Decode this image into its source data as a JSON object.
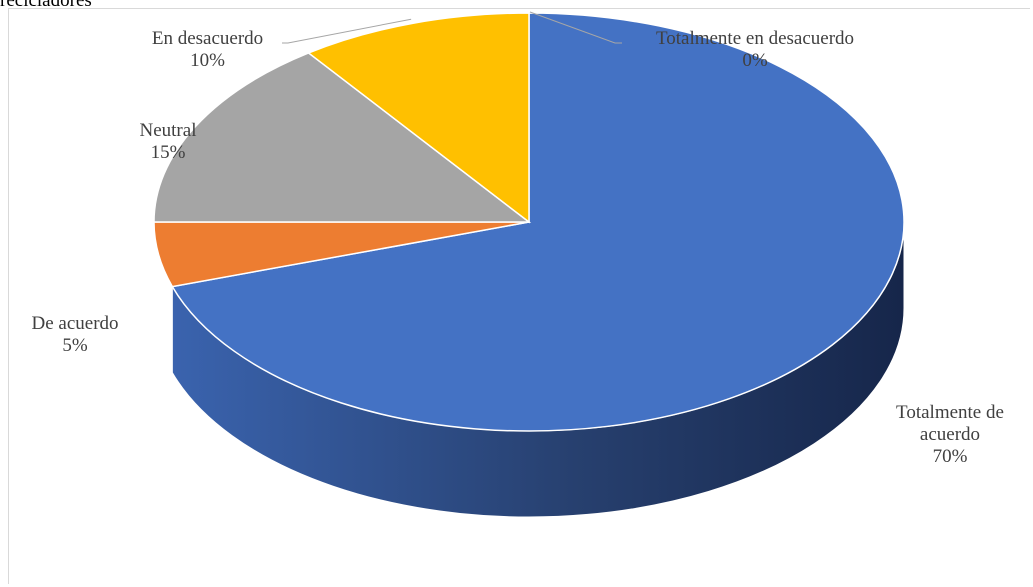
{
  "chart_data": {
    "type": "pie",
    "title": "recicladores",
    "categories": [
      "Totalmente de acuerdo",
      "De acuerdo",
      "Neutral",
      "En desacuerdo",
      "Totalmente en desacuerdo"
    ],
    "values": [
      70,
      5,
      15,
      10,
      0
    ],
    "value_labels": [
      "70%",
      "5%",
      "15%",
      "10%",
      "0%"
    ],
    "colors": [
      "#4472C4",
      "#ED7D31",
      "#A5A5A5",
      "#FFC000",
      "#5B9BD5"
    ],
    "style": "3d",
    "legend": "none"
  }
}
